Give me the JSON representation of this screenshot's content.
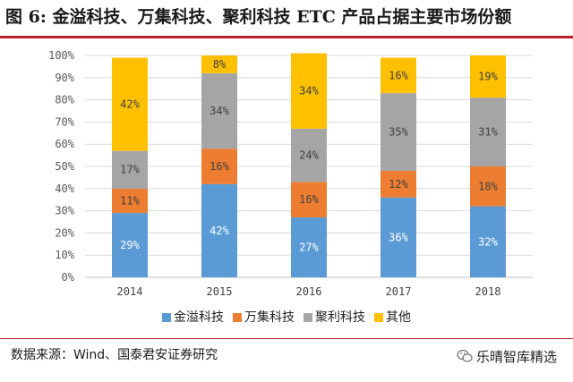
{
  "title": "图 6: 金溢科技、万集科技、聚利科技 ETC 产品占据主要市场份额",
  "source": "数据来源：Wind、国泰君安证券研究",
  "brand": "乐晴智库精选",
  "brand_icon": "wechat-icon",
  "colors": {
    "accent": "#b8202b",
    "series": [
      "#5b9bd5",
      "#ed7d31",
      "#a5a5a5",
      "#ffc000"
    ]
  },
  "chart_data": {
    "type": "bar",
    "stacked": true,
    "categories": [
      "2014",
      "2015",
      "2016",
      "2017",
      "2018"
    ],
    "series": [
      {
        "name": "金溢科技",
        "values": [
          29,
          42,
          27,
          36,
          32
        ]
      },
      {
        "name": "万集科技",
        "values": [
          11,
          16,
          16,
          12,
          18
        ]
      },
      {
        "name": "聚利科技",
        "values": [
          17,
          34,
          24,
          35,
          31
        ]
      },
      {
        "name": "其他",
        "values": [
          42,
          8,
          34,
          16,
          19
        ]
      }
    ],
    "ylim": [
      0,
      100
    ],
    "yticks": [
      "0%",
      "10%",
      "20%",
      "30%",
      "40%",
      "50%",
      "60%",
      "70%",
      "80%",
      "90%",
      "100%"
    ],
    "grid": true,
    "legend_position": "bottom",
    "data_label_suffix": "%"
  }
}
